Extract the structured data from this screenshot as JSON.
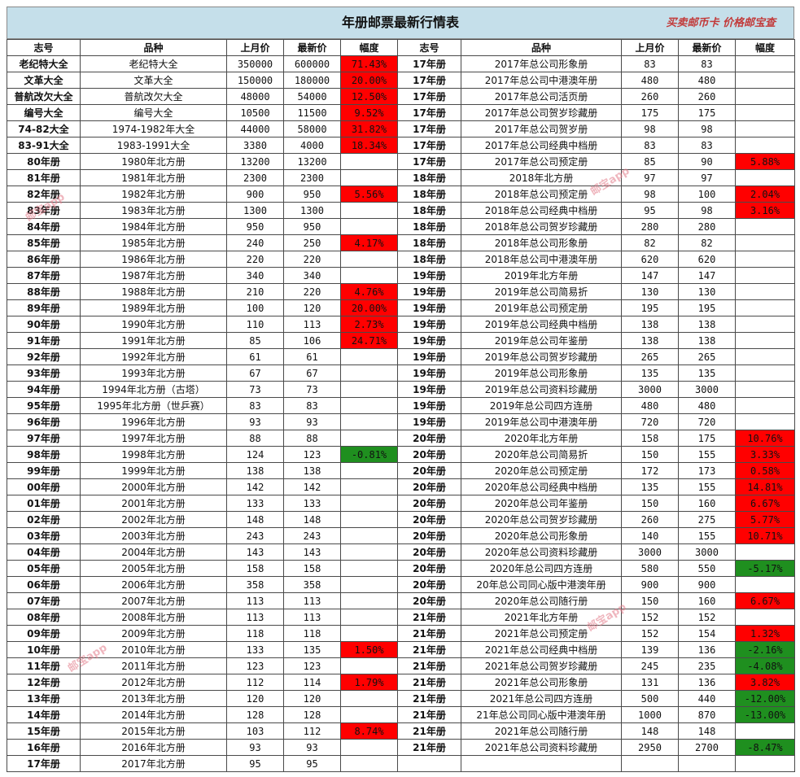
{
  "title": "年册邮票最新行情表",
  "brand": "买卖邮币卡 价格邮宝查",
  "watermark": "邮宝app",
  "colors": {
    "header_bg": "#c5dfea",
    "rise": "#ff0000",
    "fall": "#1f8f1f"
  },
  "headers": [
    "志号",
    "品种",
    "上月价",
    "最新价",
    "幅度",
    "志号",
    "品种",
    "上月价",
    "最新价",
    "幅度"
  ],
  "left_rows": [
    {
      "code": "老纪特大全",
      "name": "老纪特大全",
      "last": "350000",
      "latest": "600000",
      "change": "71.43%"
    },
    {
      "code": "文革大全",
      "name": "文革大全",
      "last": "150000",
      "latest": "180000",
      "change": "20.00%"
    },
    {
      "code": "普航改欠大全",
      "name": "普航改欠大全",
      "last": "48000",
      "latest": "54000",
      "change": "12.50%"
    },
    {
      "code": "编号大全",
      "name": "编号大全",
      "last": "10500",
      "latest": "11500",
      "change": "9.52%"
    },
    {
      "code": "74-82大全",
      "name": "1974-1982年大全",
      "last": "44000",
      "latest": "58000",
      "change": "31.82%"
    },
    {
      "code": "83-91大全",
      "name": "1983-1991大全",
      "last": "3380",
      "latest": "4000",
      "change": "18.34%"
    },
    {
      "code": "80年册",
      "name": "1980年北方册",
      "last": "13200",
      "latest": "13200",
      "change": ""
    },
    {
      "code": "81年册",
      "name": "1981年北方册",
      "last": "2300",
      "latest": "2300",
      "change": ""
    },
    {
      "code": "82年册",
      "name": "1982年北方册",
      "last": "900",
      "latest": "950",
      "change": "5.56%"
    },
    {
      "code": "83年册",
      "name": "1983年北方册",
      "last": "1300",
      "latest": "1300",
      "change": ""
    },
    {
      "code": "84年册",
      "name": "1984年北方册",
      "last": "950",
      "latest": "950",
      "change": ""
    },
    {
      "code": "85年册",
      "name": "1985年北方册",
      "last": "240",
      "latest": "250",
      "change": "4.17%"
    },
    {
      "code": "86年册",
      "name": "1986年北方册",
      "last": "220",
      "latest": "220",
      "change": ""
    },
    {
      "code": "87年册",
      "name": "1987年北方册",
      "last": "340",
      "latest": "340",
      "change": ""
    },
    {
      "code": "88年册",
      "name": "1988年北方册",
      "last": "210",
      "latest": "220",
      "change": "4.76%"
    },
    {
      "code": "89年册",
      "name": "1989年北方册",
      "last": "100",
      "latest": "120",
      "change": "20.00%"
    },
    {
      "code": "90年册",
      "name": "1990年北方册",
      "last": "110",
      "latest": "113",
      "change": "2.73%"
    },
    {
      "code": "91年册",
      "name": "1991年北方册",
      "last": "85",
      "latest": "106",
      "change": "24.71%"
    },
    {
      "code": "92年册",
      "name": "1992年北方册",
      "last": "61",
      "latest": "61",
      "change": ""
    },
    {
      "code": "93年册",
      "name": "1993年北方册",
      "last": "67",
      "latest": "67",
      "change": ""
    },
    {
      "code": "94年册",
      "name": "1994年北方册（古塔）",
      "last": "73",
      "latest": "73",
      "change": ""
    },
    {
      "code": "95年册",
      "name": "1995年北方册（世乒赛）",
      "last": "83",
      "latest": "83",
      "change": ""
    },
    {
      "code": "96年册",
      "name": "1996年北方册",
      "last": "93",
      "latest": "93",
      "change": ""
    },
    {
      "code": "97年册",
      "name": "1997年北方册",
      "last": "88",
      "latest": "88",
      "change": ""
    },
    {
      "code": "98年册",
      "name": "1998年北方册",
      "last": "124",
      "latest": "123",
      "change": "-0.81%"
    },
    {
      "code": "99年册",
      "name": "1999年北方册",
      "last": "138",
      "latest": "138",
      "change": ""
    },
    {
      "code": "00年册",
      "name": "2000年北方册",
      "last": "142",
      "latest": "142",
      "change": ""
    },
    {
      "code": "01年册",
      "name": "2001年北方册",
      "last": "133",
      "latest": "133",
      "change": ""
    },
    {
      "code": "02年册",
      "name": "2002年北方册",
      "last": "148",
      "latest": "148",
      "change": ""
    },
    {
      "code": "03年册",
      "name": "2003年北方册",
      "last": "243",
      "latest": "243",
      "change": ""
    },
    {
      "code": "04年册",
      "name": "2004年北方册",
      "last": "143",
      "latest": "143",
      "change": ""
    },
    {
      "code": "05年册",
      "name": "2005年北方册",
      "last": "158",
      "latest": "158",
      "change": ""
    },
    {
      "code": "06年册",
      "name": "2006年北方册",
      "last": "358",
      "latest": "358",
      "change": ""
    },
    {
      "code": "07年册",
      "name": "2007年北方册",
      "last": "113",
      "latest": "113",
      "change": ""
    },
    {
      "code": "08年册",
      "name": "2008年北方册",
      "last": "113",
      "latest": "113",
      "change": ""
    },
    {
      "code": "09年册",
      "name": "2009年北方册",
      "last": "118",
      "latest": "118",
      "change": ""
    },
    {
      "code": "10年册",
      "name": "2010年北方册",
      "last": "133",
      "latest": "135",
      "change": "1.50%"
    },
    {
      "code": "11年册",
      "name": "2011年北方册",
      "last": "123",
      "latest": "123",
      "change": ""
    },
    {
      "code": "12年册",
      "name": "2012年北方册",
      "last": "112",
      "latest": "114",
      "change": "1.79%"
    },
    {
      "code": "13年册",
      "name": "2013年北方册",
      "last": "120",
      "latest": "120",
      "change": ""
    },
    {
      "code": "14年册",
      "name": "2014年北方册",
      "last": "128",
      "latest": "128",
      "change": ""
    },
    {
      "code": "15年册",
      "name": "2015年北方册",
      "last": "103",
      "latest": "112",
      "change": "8.74%"
    },
    {
      "code": "16年册",
      "name": "2016年北方册",
      "last": "93",
      "latest": "93",
      "change": ""
    },
    {
      "code": "17年册",
      "name": "2017年北方册",
      "last": "95",
      "latest": "95",
      "change": ""
    }
  ],
  "right_rows": [
    {
      "code": "17年册",
      "name": "2017年总公司形象册",
      "last": "83",
      "latest": "83",
      "change": ""
    },
    {
      "code": "17年册",
      "name": "2017年总公司中港澳年册",
      "last": "480",
      "latest": "480",
      "change": ""
    },
    {
      "code": "17年册",
      "name": "2017年总公司活页册",
      "last": "260",
      "latest": "260",
      "change": ""
    },
    {
      "code": "17年册",
      "name": "2017年总公司贺岁珍藏册",
      "last": "175",
      "latest": "175",
      "change": ""
    },
    {
      "code": "17年册",
      "name": "2017年总公司贺岁册",
      "last": "98",
      "latest": "98",
      "change": ""
    },
    {
      "code": "17年册",
      "name": "2017年总公司经典中档册",
      "last": "83",
      "latest": "83",
      "change": ""
    },
    {
      "code": "17年册",
      "name": "2017年总公司预定册",
      "last": "85",
      "latest": "90",
      "change": "5.88%"
    },
    {
      "code": "18年册",
      "name": "2018年北方册",
      "last": "97",
      "latest": "97",
      "change": ""
    },
    {
      "code": "18年册",
      "name": "2018年总公司预定册",
      "last": "98",
      "latest": "100",
      "change": "2.04%"
    },
    {
      "code": "18年册",
      "name": "2018年总公司经典中档册",
      "last": "95",
      "latest": "98",
      "change": "3.16%"
    },
    {
      "code": "18年册",
      "name": "2018年总公司贺岁珍藏册",
      "last": "280",
      "latest": "280",
      "change": ""
    },
    {
      "code": "18年册",
      "name": "2018年总公司形象册",
      "last": "82",
      "latest": "82",
      "change": ""
    },
    {
      "code": "18年册",
      "name": "2018年总公司中港澳年册",
      "last": "620",
      "latest": "620",
      "change": ""
    },
    {
      "code": "19年册",
      "name": "2019年北方年册",
      "last": "147",
      "latest": "147",
      "change": ""
    },
    {
      "code": "19年册",
      "name": "2019年总公司简易折",
      "last": "130",
      "latest": "130",
      "change": ""
    },
    {
      "code": "19年册",
      "name": "2019年总公司预定册",
      "last": "195",
      "latest": "195",
      "change": ""
    },
    {
      "code": "19年册",
      "name": "2019年总公司经典中档册",
      "last": "138",
      "latest": "138",
      "change": ""
    },
    {
      "code": "19年册",
      "name": "2019年总公司年鉴册",
      "last": "138",
      "latest": "138",
      "change": ""
    },
    {
      "code": "19年册",
      "name": "2019年总公司贺岁珍藏册",
      "last": "265",
      "latest": "265",
      "change": ""
    },
    {
      "code": "19年册",
      "name": "2019年总公司形象册",
      "last": "135",
      "latest": "135",
      "change": ""
    },
    {
      "code": "19年册",
      "name": "2019年总公司资料珍藏册",
      "last": "3000",
      "latest": "3000",
      "change": ""
    },
    {
      "code": "19年册",
      "name": "2019年总公司四方连册",
      "last": "480",
      "latest": "480",
      "change": ""
    },
    {
      "code": "19年册",
      "name": "2019年总公司中港澳年册",
      "last": "720",
      "latest": "720",
      "change": ""
    },
    {
      "code": "20年册",
      "name": "2020年北方年册",
      "last": "158",
      "latest": "175",
      "change": "10.76%"
    },
    {
      "code": "20年册",
      "name": "2020年总公司简易折",
      "last": "150",
      "latest": "155",
      "change": "3.33%"
    },
    {
      "code": "20年册",
      "name": "2020年总公司预定册",
      "last": "172",
      "latest": "173",
      "change": "0.58%"
    },
    {
      "code": "20年册",
      "name": "2020年总公司经典中档册",
      "last": "135",
      "latest": "155",
      "change": "14.81%"
    },
    {
      "code": "20年册",
      "name": "2020年总公司年鉴册",
      "last": "150",
      "latest": "160",
      "change": "6.67%"
    },
    {
      "code": "20年册",
      "name": "2020年总公司贺岁珍藏册",
      "last": "260",
      "latest": "275",
      "change": "5.77%"
    },
    {
      "code": "20年册",
      "name": "2020年总公司形象册",
      "last": "140",
      "latest": "155",
      "change": "10.71%"
    },
    {
      "code": "20年册",
      "name": "2020年总公司资料珍藏册",
      "last": "3000",
      "latest": "3000",
      "change": ""
    },
    {
      "code": "20年册",
      "name": "2020年总公司四方连册",
      "last": "580",
      "latest": "550",
      "change": "-5.17%"
    },
    {
      "code": "20年册",
      "name": "20年总公司同心版中港澳年册",
      "last": "900",
      "latest": "900",
      "change": ""
    },
    {
      "code": "20年册",
      "name": "2020年总公司随行册",
      "last": "150",
      "latest": "160",
      "change": "6.67%"
    },
    {
      "code": "21年册",
      "name": "2021年北方年册",
      "last": "152",
      "latest": "152",
      "change": ""
    },
    {
      "code": "21年册",
      "name": "2021年总公司预定册",
      "last": "152",
      "latest": "154",
      "change": "1.32%"
    },
    {
      "code": "21年册",
      "name": "2021年总公司经典中档册",
      "last": "139",
      "latest": "136",
      "change": "-2.16%"
    },
    {
      "code": "21年册",
      "name": "2021年总公司贺岁珍藏册",
      "last": "245",
      "latest": "235",
      "change": "-4.08%"
    },
    {
      "code": "21年册",
      "name": "2021年总公司形象册",
      "last": "131",
      "latest": "136",
      "change": "3.82%"
    },
    {
      "code": "21年册",
      "name": "2021年总公司四方连册",
      "last": "500",
      "latest": "440",
      "change": "-12.00%"
    },
    {
      "code": "21年册",
      "name": "21年总公司同心版中港澳年册",
      "last": "1000",
      "latest": "870",
      "change": "-13.00%"
    },
    {
      "code": "21年册",
      "name": "2021年总公司随行册",
      "last": "148",
      "latest": "148",
      "change": ""
    },
    {
      "code": "21年册",
      "name": "2021年总公司资料珍藏册",
      "last": "2950",
      "latest": "2700",
      "change": "-8.47%"
    }
  ]
}
